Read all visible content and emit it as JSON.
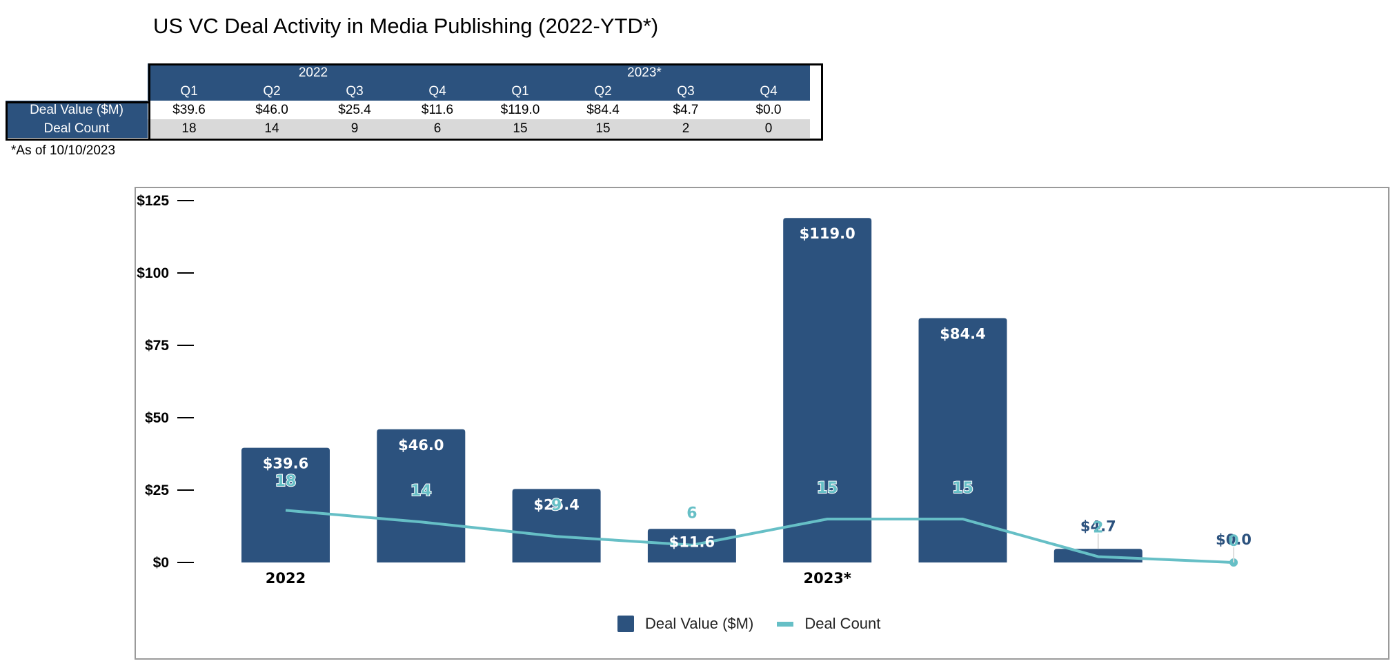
{
  "title": "US VC Deal Activity in Media Publishing (2022-YTD*)",
  "table": {
    "years": [
      {
        "label": "2022",
        "span": 4
      },
      {
        "label": "2023*",
        "span": 4
      }
    ],
    "quarters": [
      "Q1",
      "Q2",
      "Q3",
      "Q4",
      "Q1",
      "Q2",
      "Q3",
      "Q4"
    ],
    "rows": [
      {
        "label": "Deal Value ($M)",
        "values": [
          "$39.6",
          "$46.0",
          "$25.4",
          "$11.6",
          "$119.0",
          "$84.4",
          "$4.7",
          "$0.0"
        ]
      },
      {
        "label": "Deal Count",
        "values": [
          "18",
          "14",
          "9",
          "6",
          "15",
          "15",
          "2",
          "0"
        ]
      }
    ]
  },
  "note": "*As of 10/10/2023",
  "colors": {
    "bar": "#2c527e",
    "line": "#66bfc6",
    "header_bg": "#2c527e",
    "alt_row": "#d9d9d9"
  },
  "chart_data": {
    "type": "bar",
    "title": "",
    "categories": [
      "2022 Q1",
      "2022 Q2",
      "2022 Q3",
      "2022 Q4",
      "2023 Q1",
      "2023 Q2",
      "2023 Q3",
      "2023 Q4"
    ],
    "category_group_labels": [
      {
        "label": "2022",
        "at_index": 0
      },
      {
        "label": "2023*",
        "at_index": 4
      }
    ],
    "series": [
      {
        "name": "Deal Value ($M)",
        "type": "bar",
        "values": [
          39.6,
          46.0,
          25.4,
          11.6,
          119.0,
          84.4,
          4.7,
          0.0
        ],
        "labels": [
          "$39.6",
          "$46.0",
          "$25.4",
          "$11.6",
          "$119.0",
          "$84.4",
          "$4.7",
          "$0.0"
        ]
      },
      {
        "name": "Deal Count",
        "type": "line",
        "values": [
          18,
          14,
          9,
          6,
          15,
          15,
          2,
          0
        ],
        "labels": [
          "18",
          "14",
          "9",
          "6",
          "15",
          "15",
          "2",
          "0"
        ]
      }
    ],
    "yticks": [
      "$0",
      "$25",
      "$50",
      "$75",
      "$100",
      "$125"
    ],
    "ytick_values": [
      0,
      25,
      50,
      75,
      100,
      125
    ],
    "ylim": [
      0,
      125
    ],
    "xlabel": "",
    "ylabel": "",
    "grid": false,
    "legend": {
      "position": "bottom-center",
      "entries": [
        {
          "label": "Deal Value ($M)",
          "symbol": "square"
        },
        {
          "label": "Deal Count",
          "symbol": "line"
        }
      ]
    }
  }
}
